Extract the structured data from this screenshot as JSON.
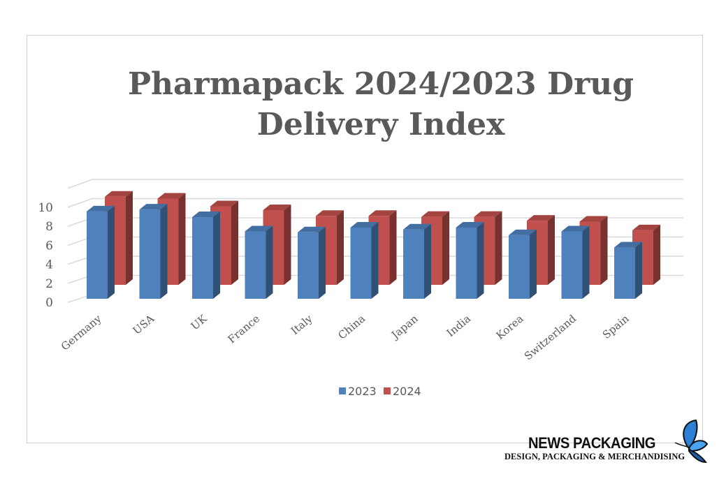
{
  "chart_data": {
    "type": "bar",
    "style": "3d-clustered-column",
    "title": "Pharmapack 2024/2023 Drug Delivery Index",
    "title_lines": [
      "Pharmapack 2024/2023 Drug",
      "Delivery Index"
    ],
    "categories": [
      "Germany",
      "USA",
      "UK",
      "France",
      "Italy",
      "China",
      "Japan",
      "India",
      "Korea",
      "Switzerland",
      "Spain"
    ],
    "series": [
      {
        "name": "2023",
        "color": "#4f81bd",
        "values": [
          9.2,
          9.4,
          8.6,
          7.1,
          7.0,
          7.5,
          7.3,
          7.5,
          6.7,
          7.1,
          5.4
        ]
      },
      {
        "name": "2024",
        "color": "#c0504d",
        "values": [
          10.2,
          10.0,
          9.2,
          8.8,
          8.2,
          8.2,
          8.1,
          8.1,
          7.7,
          7.6,
          6.7
        ]
      }
    ],
    "y_ticks": [
      "0",
      "2",
      "4",
      "6",
      "8",
      "10"
    ],
    "ylim": [
      0,
      12
    ],
    "grid": true,
    "legend_position": "bottom"
  },
  "logo": {
    "name": "NEWS PACKAGING",
    "tagline": "DESIGN, PACKAGING & MERCHANDISING",
    "icon": "butterfly-icon"
  }
}
